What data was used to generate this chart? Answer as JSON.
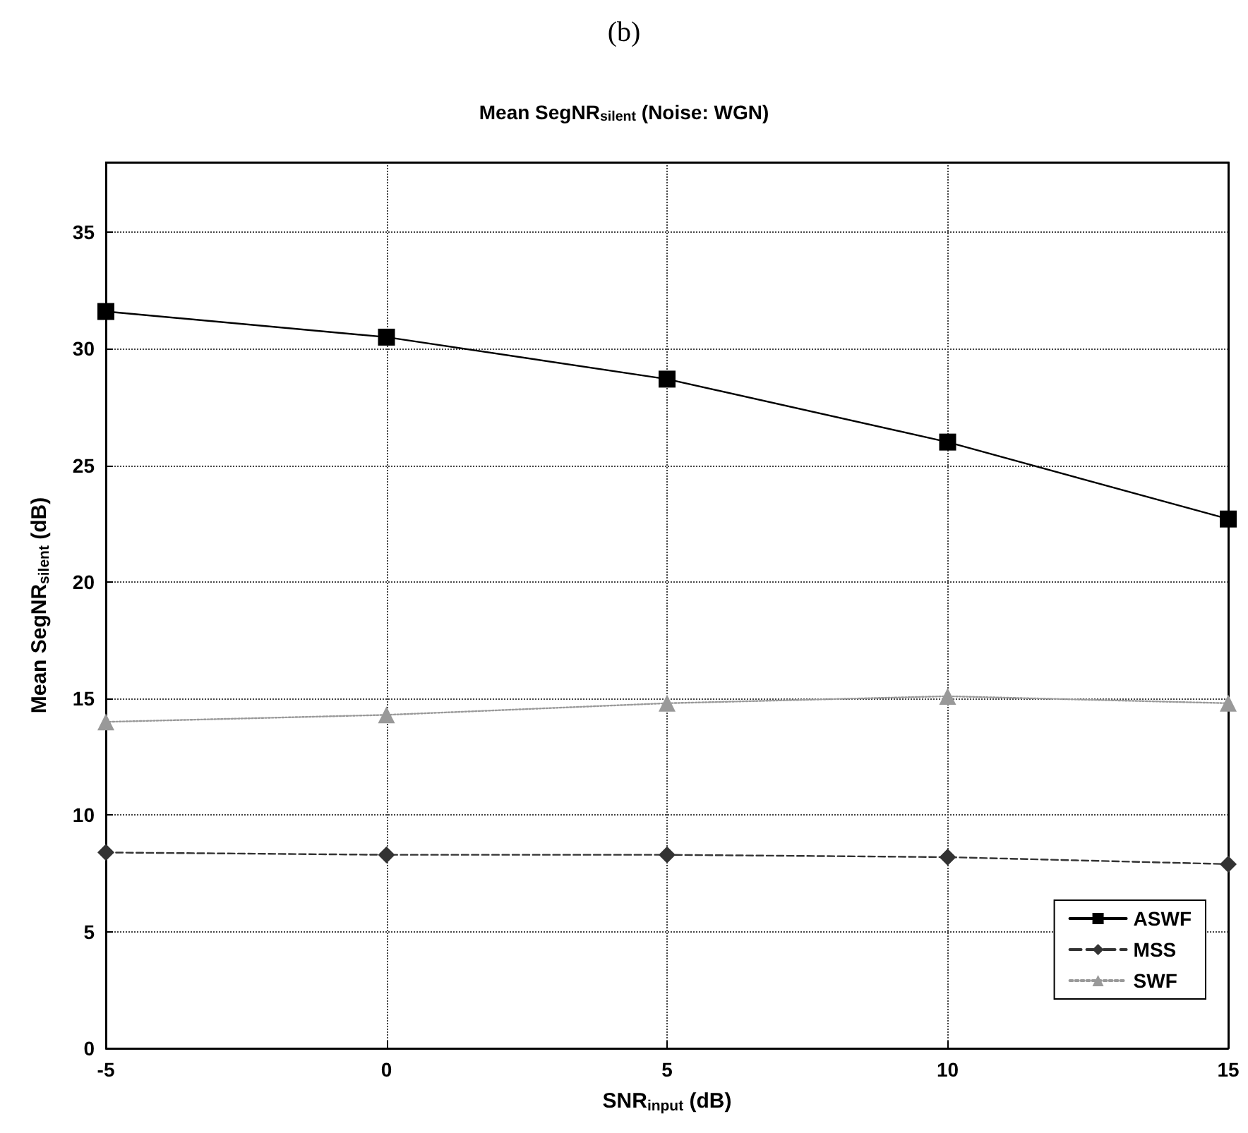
{
  "chart_data": {
    "type": "line",
    "title": "Mean SegNR$_{silent}$ (Noise: WGN)",
    "subtitle": "(b)",
    "xlabel": "SNR$_{input}$ (dB)",
    "ylabel": "Mean SegNR$_{silent}$ (dB)",
    "x": [
      -5,
      0,
      5,
      10,
      15
    ],
    "series": [
      {
        "name": "ASWF",
        "color": "#000000",
        "marker": "square",
        "line_style": "solid",
        "values": [
          31.6,
          30.5,
          28.7,
          26.0,
          22.7
        ]
      },
      {
        "name": "MSS",
        "color": "#333333",
        "marker": "diamond",
        "line_style": "dashed",
        "values": [
          8.4,
          8.3,
          8.3,
          8.2,
          7.9
        ]
      },
      {
        "name": "SWF",
        "color": "#999999",
        "marker": "triangle",
        "line_style": "dotted",
        "values": [
          14.0,
          14.3,
          14.8,
          15.1,
          14.8
        ]
      }
    ],
    "xlim": [
      -5,
      15
    ],
    "xticks": [
      -5,
      0,
      5,
      10,
      15
    ],
    "ylim": [
      0,
      38
    ],
    "yticks": [
      0,
      5,
      10,
      15,
      20,
      25,
      30,
      35
    ],
    "grid": true,
    "legend": "bottom right"
  }
}
